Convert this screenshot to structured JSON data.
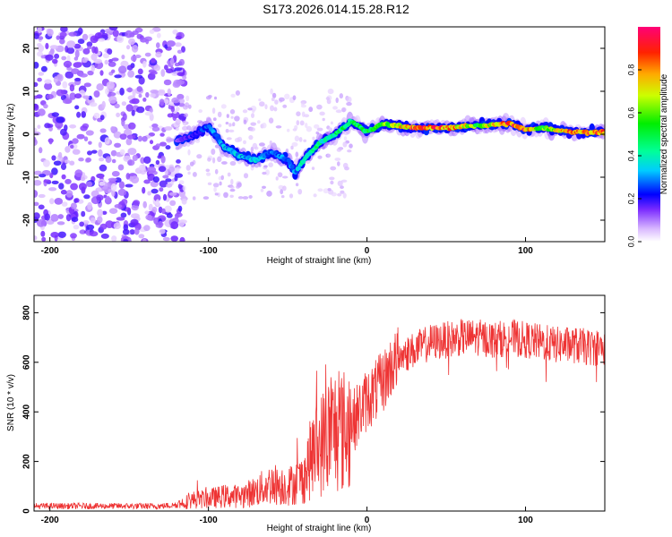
{
  "title": "S173.2026.014.15.28.R12",
  "colors": {
    "snr_line": "#ee3333",
    "frame": "#000000",
    "background": "#ffffff"
  },
  "chart_data": [
    {
      "type": "heatmap",
      "name": "spectrogram",
      "xlabel": "Height of straight line (km)",
      "ylabel": "Frequency (Hz)",
      "xlim": [
        -210,
        150
      ],
      "ylim": [
        -25,
        25
      ],
      "xticks": [
        -200,
        -100,
        0,
        100
      ],
      "yticks": [
        -20,
        -10,
        0,
        10,
        20
      ],
      "colorbar": {
        "label": "Normalized spectral amplitude",
        "range": [
          0.0,
          1.0
        ],
        "ticks": [
          0.0,
          0.2,
          0.4,
          0.6,
          0.8
        ]
      },
      "ridge": [
        {
          "x": -120,
          "f": -1.5,
          "amp": 0.15
        },
        {
          "x": -110,
          "f": -0.5,
          "amp": 0.2
        },
        {
          "x": -100,
          "f": 2.0,
          "amp": 0.3
        },
        {
          "x": -90,
          "f": -3.0,
          "amp": 0.35
        },
        {
          "x": -80,
          "f": -5.0,
          "amp": 0.35
        },
        {
          "x": -70,
          "f": -6.0,
          "amp": 0.35
        },
        {
          "x": -60,
          "f": -4.0,
          "amp": 0.3
        },
        {
          "x": -50,
          "f": -6.0,
          "amp": 0.3
        },
        {
          "x": -45,
          "f": -9.0,
          "amp": 0.3
        },
        {
          "x": -40,
          "f": -6.0,
          "amp": 0.45
        },
        {
          "x": -30,
          "f": -2.0,
          "amp": 0.45
        },
        {
          "x": -20,
          "f": 0.0,
          "amp": 0.5
        },
        {
          "x": -10,
          "f": 3.0,
          "amp": 0.5
        },
        {
          "x": 0,
          "f": 0.5,
          "amp": 0.55
        },
        {
          "x": 10,
          "f": 2.5,
          "amp": 0.6
        },
        {
          "x": 30,
          "f": 1.5,
          "amp": 0.9
        },
        {
          "x": 50,
          "f": 1.5,
          "amp": 0.9
        },
        {
          "x": 70,
          "f": 2.0,
          "amp": 0.6
        },
        {
          "x": 90,
          "f": 2.5,
          "amp": 0.95
        },
        {
          "x": 100,
          "f": 1.0,
          "amp": 0.9
        },
        {
          "x": 110,
          "f": 1.5,
          "amp": 0.6
        },
        {
          "x": 130,
          "f": 0.5,
          "amp": 0.9
        },
        {
          "x": 145,
          "f": 0.5,
          "amp": 0.9
        }
      ]
    },
    {
      "type": "line",
      "name": "snr",
      "xlabel": "Height of straight line (km)",
      "ylabel": "SNR (10 * v/v)",
      "xlim": [
        -210,
        150
      ],
      "ylim": [
        0,
        870
      ],
      "xticks": [
        -200,
        -100,
        0,
        100
      ],
      "yticks": [
        0,
        200,
        400,
        600,
        800
      ],
      "series": [
        {
          "name": "SNR",
          "x": [
            -210,
            -180,
            -150,
            -130,
            -120,
            -110,
            -100,
            -90,
            -80,
            -70,
            -60,
            -50,
            -40,
            -35,
            -30,
            -25,
            -20,
            -15,
            -10,
            -5,
            0,
            5,
            10,
            15,
            20,
            30,
            40,
            50,
            60,
            70,
            80,
            90,
            100,
            110,
            120,
            130,
            140,
            150
          ],
          "y": [
            20,
            20,
            20,
            20,
            25,
            45,
            50,
            60,
            60,
            80,
            110,
            100,
            130,
            220,
            260,
            300,
            330,
            320,
            350,
            400,
            450,
            480,
            520,
            580,
            620,
            650,
            680,
            690,
            700,
            700,
            690,
            700,
            690,
            680,
            670,
            670,
            660,
            660
          ]
        }
      ]
    }
  ]
}
